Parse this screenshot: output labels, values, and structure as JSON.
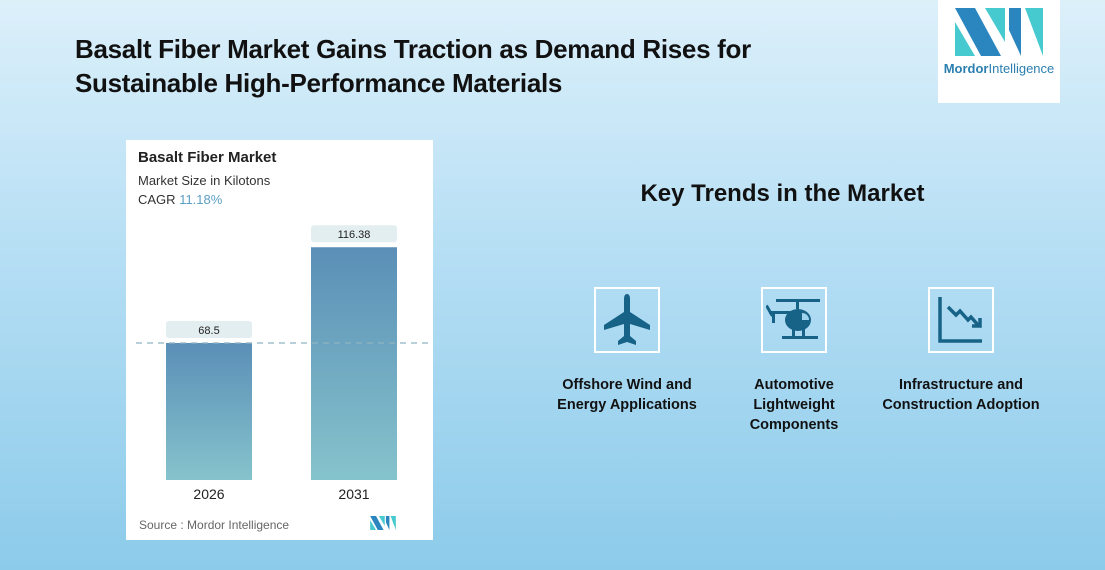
{
  "header": {
    "title_line1": "Basalt Fiber Market Gains Traction as Demand Rises for",
    "title_line2": "Sustainable High-Performance Materials"
  },
  "logo": {
    "brand1": "Mordor",
    "brand2": "Intelligence"
  },
  "chart_data": {
    "type": "bar",
    "title": "Basalt Fiber Market",
    "subtitle": "Market Size in Kilotons",
    "cagr_label": "CAGR",
    "cagr_value": "11.18%",
    "categories": [
      "2026",
      "2031"
    ],
    "values": [
      68.5,
      116.38
    ],
    "value_labels": [
      "68.5",
      "116.38"
    ],
    "ylim": [
      0,
      125
    ],
    "grid": false,
    "source": "Source :  Mordor Intelligence",
    "colors": {
      "bar_top": "#5b8fb7",
      "bar_bottom": "#85c3cc",
      "label_bg": "#e3eef1"
    }
  },
  "trends": {
    "heading": "Key Trends in the Market",
    "items": [
      {
        "label": "Offshore Wind and Energy Applications",
        "icon": "airplane-icon"
      },
      {
        "label": "Automotive Lightweight Components",
        "icon": "helicopter-icon"
      },
      {
        "label": "Infrastructure and Construction Adoption",
        "icon": "declining-chart-icon"
      }
    ],
    "icon_color": "#176287"
  }
}
